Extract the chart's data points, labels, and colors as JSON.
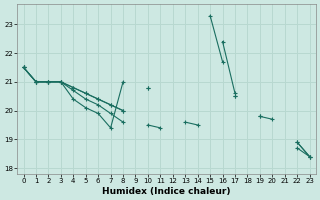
{
  "xlabel": "Humidex (Indice chaleur)",
  "background_color": "#cde8e2",
  "grid_color": "#b8d8d0",
  "line_color": "#1a6e60",
  "series": [
    [
      21.5,
      21.0,
      21.0,
      21.0,
      20.4,
      20.1,
      19.9,
      19.4,
      21.0,
      null,
      null,
      null,
      null,
      null,
      null,
      23.3,
      21.7,
      null,
      null,
      null,
      null,
      null,
      null,
      null
    ],
    [
      21.5,
      21.0,
      21.0,
      21.0,
      20.7,
      20.4,
      20.2,
      19.9,
      19.6,
      null,
      19.5,
      19.4,
      null,
      19.6,
      19.5,
      null,
      22.4,
      20.6,
      null,
      null,
      null,
      null,
      18.7,
      18.4
    ],
    [
      21.5,
      21.0,
      21.0,
      21.0,
      20.8,
      20.6,
      20.4,
      20.2,
      20.0,
      null,
      20.8,
      null,
      null,
      null,
      null,
      null,
      null,
      20.5,
      null,
      19.8,
      19.7,
      null,
      18.9,
      18.4
    ],
    [
      21.5,
      21.0,
      21.0,
      21.0,
      20.8,
      20.6,
      20.4,
      20.2,
      20.0,
      null,
      20.8,
      null,
      null,
      null,
      null,
      null,
      null,
      20.5,
      null,
      19.8,
      null,
      null,
      18.9,
      18.4
    ]
  ],
  "xlim": [
    -0.5,
    23.5
  ],
  "ylim": [
    17.8,
    23.7
  ],
  "yticks": [
    18,
    19,
    20,
    21,
    22,
    23
  ],
  "xticks": [
    0,
    1,
    2,
    3,
    4,
    5,
    6,
    7,
    8,
    9,
    10,
    11,
    12,
    13,
    14,
    15,
    16,
    17,
    18,
    19,
    20,
    21,
    22,
    23
  ]
}
